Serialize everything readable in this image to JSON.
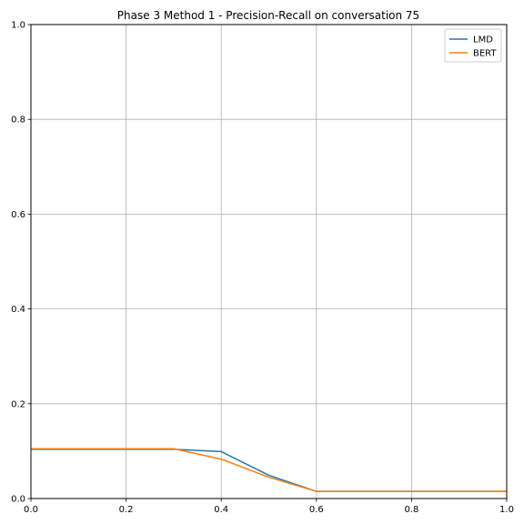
{
  "chart_data": {
    "type": "line",
    "title": "Phase 3 Method 1 - Precision-Recall on conversation 75",
    "xlabel": "",
    "ylabel": "",
    "xlim": [
      0,
      1
    ],
    "ylim": [
      0,
      1
    ],
    "xticks": [
      "0.0",
      "0.2",
      "0.4",
      "0.6",
      "0.8",
      "1.0"
    ],
    "yticks": [
      "0.0",
      "0.2",
      "0.4",
      "0.6",
      "0.8",
      "1.0"
    ],
    "grid": true,
    "legend_position": "top-right",
    "x": [
      0.0,
      0.1,
      0.2,
      0.3,
      0.4,
      0.5,
      0.6,
      0.7,
      0.8,
      0.9,
      1.0
    ],
    "series": [
      {
        "name": "LMD",
        "color": "#1f77b4",
        "values": [
          0.104,
          0.104,
          0.104,
          0.104,
          0.099,
          0.049,
          0.015,
          0.015,
          0.015,
          0.015,
          0.015
        ]
      },
      {
        "name": "BERT",
        "color": "#ff7f0e",
        "values": [
          0.105,
          0.105,
          0.105,
          0.105,
          0.083,
          0.045,
          0.015,
          0.015,
          0.015,
          0.015,
          0.015
        ]
      }
    ]
  }
}
